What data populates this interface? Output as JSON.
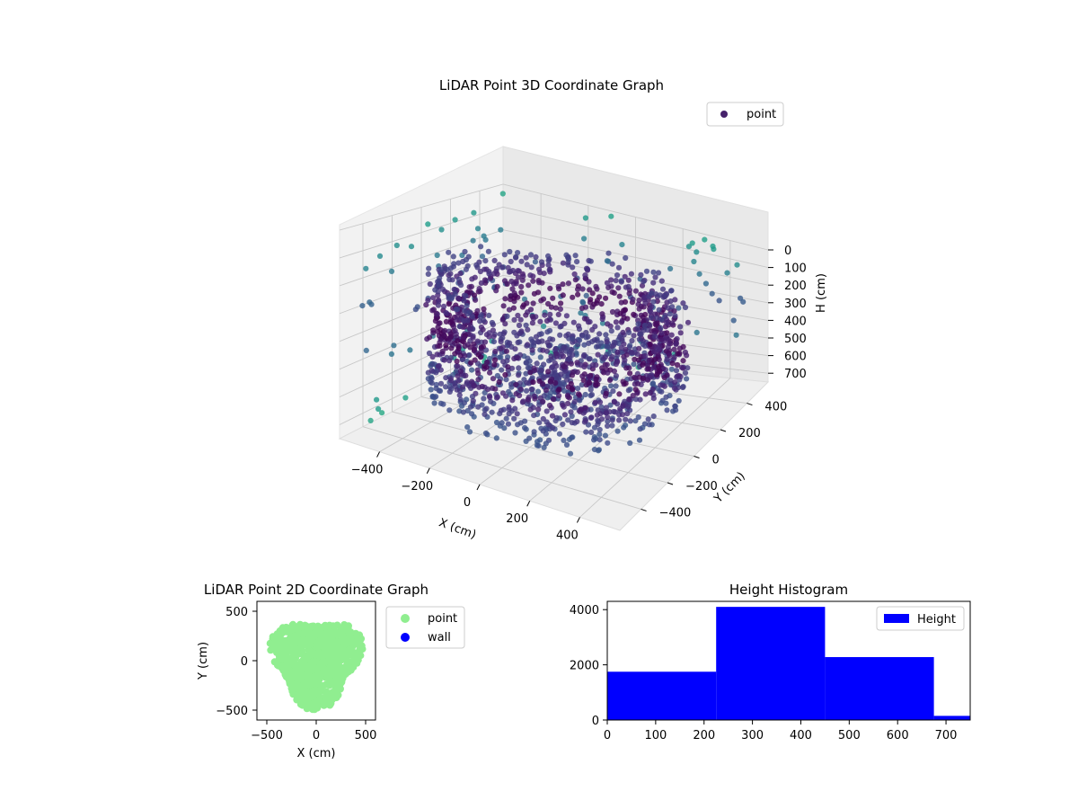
{
  "chart_data": [
    {
      "type": "scatter3d",
      "title": "LiDAR Point 3D Coordinate Graph",
      "xlabel": "X (cm)",
      "ylabel": "Y (cm)",
      "zlabel": "H (cm)",
      "xticks": [
        "−400",
        "−200",
        "0",
        "200",
        "400"
      ],
      "yticks": [
        "400",
        "200",
        "0",
        "−200",
        "−400"
      ],
      "zticks": [
        "0",
        "100",
        "200",
        "300",
        "400",
        "500",
        "600",
        "700"
      ],
      "xlim": [
        -560,
        560
      ],
      "ylim": [
        -560,
        560
      ],
      "zlim": [
        0,
        750
      ],
      "z_inverted": true,
      "grid": true,
      "legend": {
        "position": "top-right",
        "entries": [
          "point"
        ]
      },
      "colormap": "viridis",
      "series": [
        {
          "name": "point",
          "description": "dense ring of points around a room wall (radius ~350-470 cm), height mostly 200-600 cm, plus sparse outlier points near the axis boundaries",
          "ring_radius_range": [
            330,
            470
          ],
          "height_range": [
            150,
            620
          ]
        }
      ]
    },
    {
      "type": "scatter",
      "title": "LiDAR Point 2D Coordinate Graph",
      "xlabel": "X (cm)",
      "ylabel": "Y (cm)",
      "xticks": [
        "−500",
        "0",
        "500"
      ],
      "yticks": [
        "500",
        "0",
        "−500"
      ],
      "xlim": [
        -600,
        600
      ],
      "ylim": [
        -600,
        600
      ],
      "legend": {
        "position": "right",
        "entries": [
          "point",
          "wall"
        ]
      },
      "series": [
        {
          "name": "point",
          "color": "#90ee90"
        },
        {
          "name": "wall",
          "color": "#0000ff",
          "values": []
        }
      ]
    },
    {
      "type": "bar",
      "title": "Height Histogram",
      "xlabel": "",
      "ylabel": "",
      "bins": [
        [
          0,
          225
        ],
        [
          225,
          450
        ],
        [
          450,
          675
        ],
        [
          675,
          750
        ]
      ],
      "values": [
        1750,
        4100,
        2280,
        150
      ],
      "xticks": [
        "0",
        "100",
        "200",
        "300",
        "400",
        "500",
        "600",
        "700"
      ],
      "yticks": [
        "0",
        "2000",
        "4000"
      ],
      "xlim": [
        0,
        750
      ],
      "ylim": [
        0,
        4300
      ],
      "color": "#0000ff",
      "legend": {
        "position": "top-right",
        "entries": [
          "Height"
        ]
      },
      "series": [
        {
          "name": "Height"
        }
      ]
    }
  ]
}
